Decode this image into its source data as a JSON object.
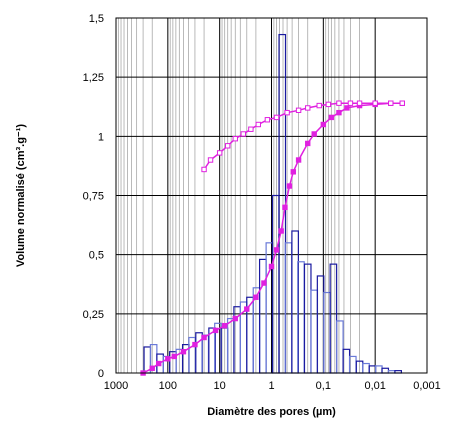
{
  "chart_data": {
    "type": "bar",
    "title": "",
    "xlabel": "Diamètre des pores (µm)",
    "ylabel": "Volume normalisé (cm³.g⁻¹)",
    "x_scale": "log",
    "x_reversed": true,
    "xlim": [
      1000,
      0.001
    ],
    "ylim": [
      0,
      1.5
    ],
    "x_tick_labels": [
      "1000",
      "100",
      "10",
      "1",
      "0,1",
      "0,01",
      "0,001"
    ],
    "y_tick_labels": [
      "0",
      "0,25",
      "0,5",
      "0,75",
      "1",
      "1,25",
      "1,5"
    ],
    "grid": true,
    "legend": "none",
    "colors": {
      "bars_dark": "#1a1aa0",
      "bars_light": "#6a7ad8",
      "curves": "#e020e0"
    },
    "bars": [
      {
        "x": 249,
        "y": 0.11,
        "tone": "dark"
      },
      {
        "x": 188,
        "y": 0.12,
        "tone": "light"
      },
      {
        "x": 141,
        "y": 0.08,
        "tone": "dark"
      },
      {
        "x": 106,
        "y": 0.07,
        "tone": "light"
      },
      {
        "x": 80,
        "y": 0.09,
        "tone": "dark"
      },
      {
        "x": 60,
        "y": 0.1,
        "tone": "light"
      },
      {
        "x": 45,
        "y": 0.12,
        "tone": "dark"
      },
      {
        "x": 34,
        "y": 0.15,
        "tone": "light"
      },
      {
        "x": 25,
        "y": 0.17,
        "tone": "dark"
      },
      {
        "x": 19,
        "y": 0.16,
        "tone": "light"
      },
      {
        "x": 14,
        "y": 0.19,
        "tone": "dark"
      },
      {
        "x": 10.8,
        "y": 0.21,
        "tone": "light"
      },
      {
        "x": 8.1,
        "y": 0.19,
        "tone": "dark"
      },
      {
        "x": 6.1,
        "y": 0.23,
        "tone": "light"
      },
      {
        "x": 4.6,
        "y": 0.28,
        "tone": "dark"
      },
      {
        "x": 3.45,
        "y": 0.3,
        "tone": "light"
      },
      {
        "x": 2.6,
        "y": 0.32,
        "tone": "dark"
      },
      {
        "x": 1.95,
        "y": 0.36,
        "tone": "light"
      },
      {
        "x": 1.47,
        "y": 0.48,
        "tone": "dark"
      },
      {
        "x": 1.1,
        "y": 0.55,
        "tone": "light"
      },
      {
        "x": 0.83,
        "y": 0.75,
        "tone": "dark"
      },
      {
        "x": 0.62,
        "y": 1.43,
        "tone": "dark"
      },
      {
        "x": 0.47,
        "y": 0.55,
        "tone": "light"
      },
      {
        "x": 0.35,
        "y": 0.6,
        "tone": "dark"
      },
      {
        "x": 0.27,
        "y": 0.47,
        "tone": "light"
      },
      {
        "x": 0.2,
        "y": 0.46,
        "tone": "dark"
      },
      {
        "x": 0.15,
        "y": 0.35,
        "tone": "light"
      },
      {
        "x": 0.113,
        "y": 0.41,
        "tone": "dark"
      },
      {
        "x": 0.085,
        "y": 0.34,
        "tone": "light"
      },
      {
        "x": 0.064,
        "y": 0.46,
        "tone": "dark"
      },
      {
        "x": 0.048,
        "y": 0.22,
        "tone": "light"
      },
      {
        "x": 0.036,
        "y": 0.1,
        "tone": "dark"
      },
      {
        "x": 0.027,
        "y": 0.07,
        "tone": "light"
      },
      {
        "x": 0.02,
        "y": 0.05,
        "tone": "dark"
      },
      {
        "x": 0.015,
        "y": 0.04,
        "tone": "light"
      },
      {
        "x": 0.0113,
        "y": 0.03,
        "tone": "dark"
      },
      {
        "x": 0.0085,
        "y": 0.03,
        "tone": "light"
      },
      {
        "x": 0.0064,
        "y": 0.02,
        "tone": "dark"
      },
      {
        "x": 0.0048,
        "y": 0.01,
        "tone": "light"
      },
      {
        "x": 0.0036,
        "y": 0.01,
        "tone": "dark"
      }
    ],
    "series": [
      {
        "marker": "filled-square",
        "points": [
          [
            300,
            0.0
          ],
          [
            200,
            0.02
          ],
          [
            150,
            0.04
          ],
          [
            100,
            0.06
          ],
          [
            75,
            0.07
          ],
          [
            50,
            0.09
          ],
          [
            30,
            0.12
          ],
          [
            20,
            0.15
          ],
          [
            12,
            0.18
          ],
          [
            8,
            0.2
          ],
          [
            5,
            0.23
          ],
          [
            3,
            0.27
          ],
          [
            2,
            0.32
          ],
          [
            1.4,
            0.38
          ],
          [
            1,
            0.45
          ],
          [
            0.8,
            0.52
          ],
          [
            0.65,
            0.6
          ],
          [
            0.55,
            0.7
          ],
          [
            0.45,
            0.79
          ],
          [
            0.38,
            0.85
          ],
          [
            0.3,
            0.9
          ],
          [
            0.2,
            0.97
          ],
          [
            0.15,
            1.01
          ],
          [
            0.1,
            1.05
          ],
          [
            0.07,
            1.08
          ],
          [
            0.05,
            1.1
          ],
          [
            0.035,
            1.12
          ],
          [
            0.02,
            1.13
          ],
          [
            0.01,
            1.135
          ],
          [
            0.005,
            1.14
          ],
          [
            0.003,
            1.14
          ]
        ]
      },
      {
        "marker": "open-square",
        "points": [
          [
            20,
            0.86
          ],
          [
            15,
            0.9
          ],
          [
            10,
            0.93
          ],
          [
            7,
            0.96
          ],
          [
            5,
            0.99
          ],
          [
            3.5,
            1.01
          ],
          [
            2.5,
            1.03
          ],
          [
            1.8,
            1.05
          ],
          [
            1.2,
            1.07
          ],
          [
            0.8,
            1.08
          ],
          [
            0.5,
            1.1
          ],
          [
            0.3,
            1.11
          ],
          [
            0.2,
            1.12
          ],
          [
            0.12,
            1.13
          ],
          [
            0.08,
            1.135
          ],
          [
            0.05,
            1.14
          ],
          [
            0.03,
            1.14
          ],
          [
            0.02,
            1.14
          ],
          [
            0.01,
            1.14
          ],
          [
            0.005,
            1.14
          ],
          [
            0.003,
            1.14
          ]
        ]
      }
    ]
  }
}
